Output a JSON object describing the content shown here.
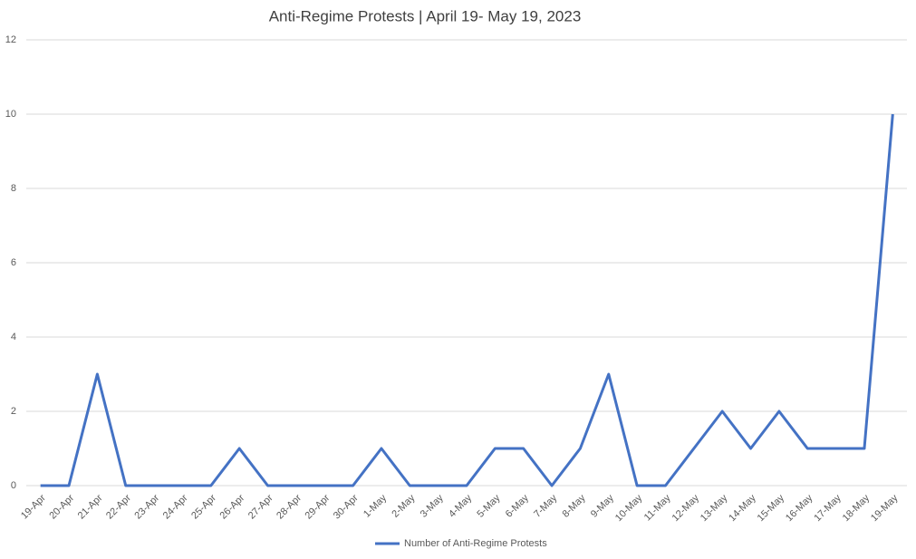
{
  "chart_data": {
    "type": "line",
    "title": "Anti-Regime Protests | April 19- May 19, 2023",
    "categories": [
      "19-Apr",
      "20-Apr",
      "21-Apr",
      "22-Apr",
      "23-Apr",
      "24-Apr",
      "25-Apr",
      "26-Apr",
      "27-Apr",
      "28-Apr",
      "29-Apr",
      "30-Apr",
      "1-May",
      "2-May",
      "3-May",
      "4-May",
      "5-May",
      "6-May",
      "7-May",
      "8-May",
      "9-May",
      "10-May",
      "11-May",
      "12-May",
      "13-May",
      "14-May",
      "15-May",
      "16-May",
      "17-May",
      "18-May",
      "19-May"
    ],
    "series": [
      {
        "name": "Number of Anti-Regime Protests",
        "color": "#4472c4",
        "values": [
          0,
          0,
          3,
          0,
          0,
          0,
          0,
          1,
          0,
          0,
          0,
          0,
          1,
          0,
          0,
          0,
          1,
          1,
          0,
          1,
          3,
          0,
          0,
          1,
          2,
          1,
          2,
          1,
          1,
          1,
          10
        ]
      }
    ],
    "ylim": [
      0,
      12
    ],
    "yticks": [
      0,
      2,
      4,
      6,
      8,
      10,
      12
    ],
    "grid": true,
    "legend": "bottom"
  }
}
